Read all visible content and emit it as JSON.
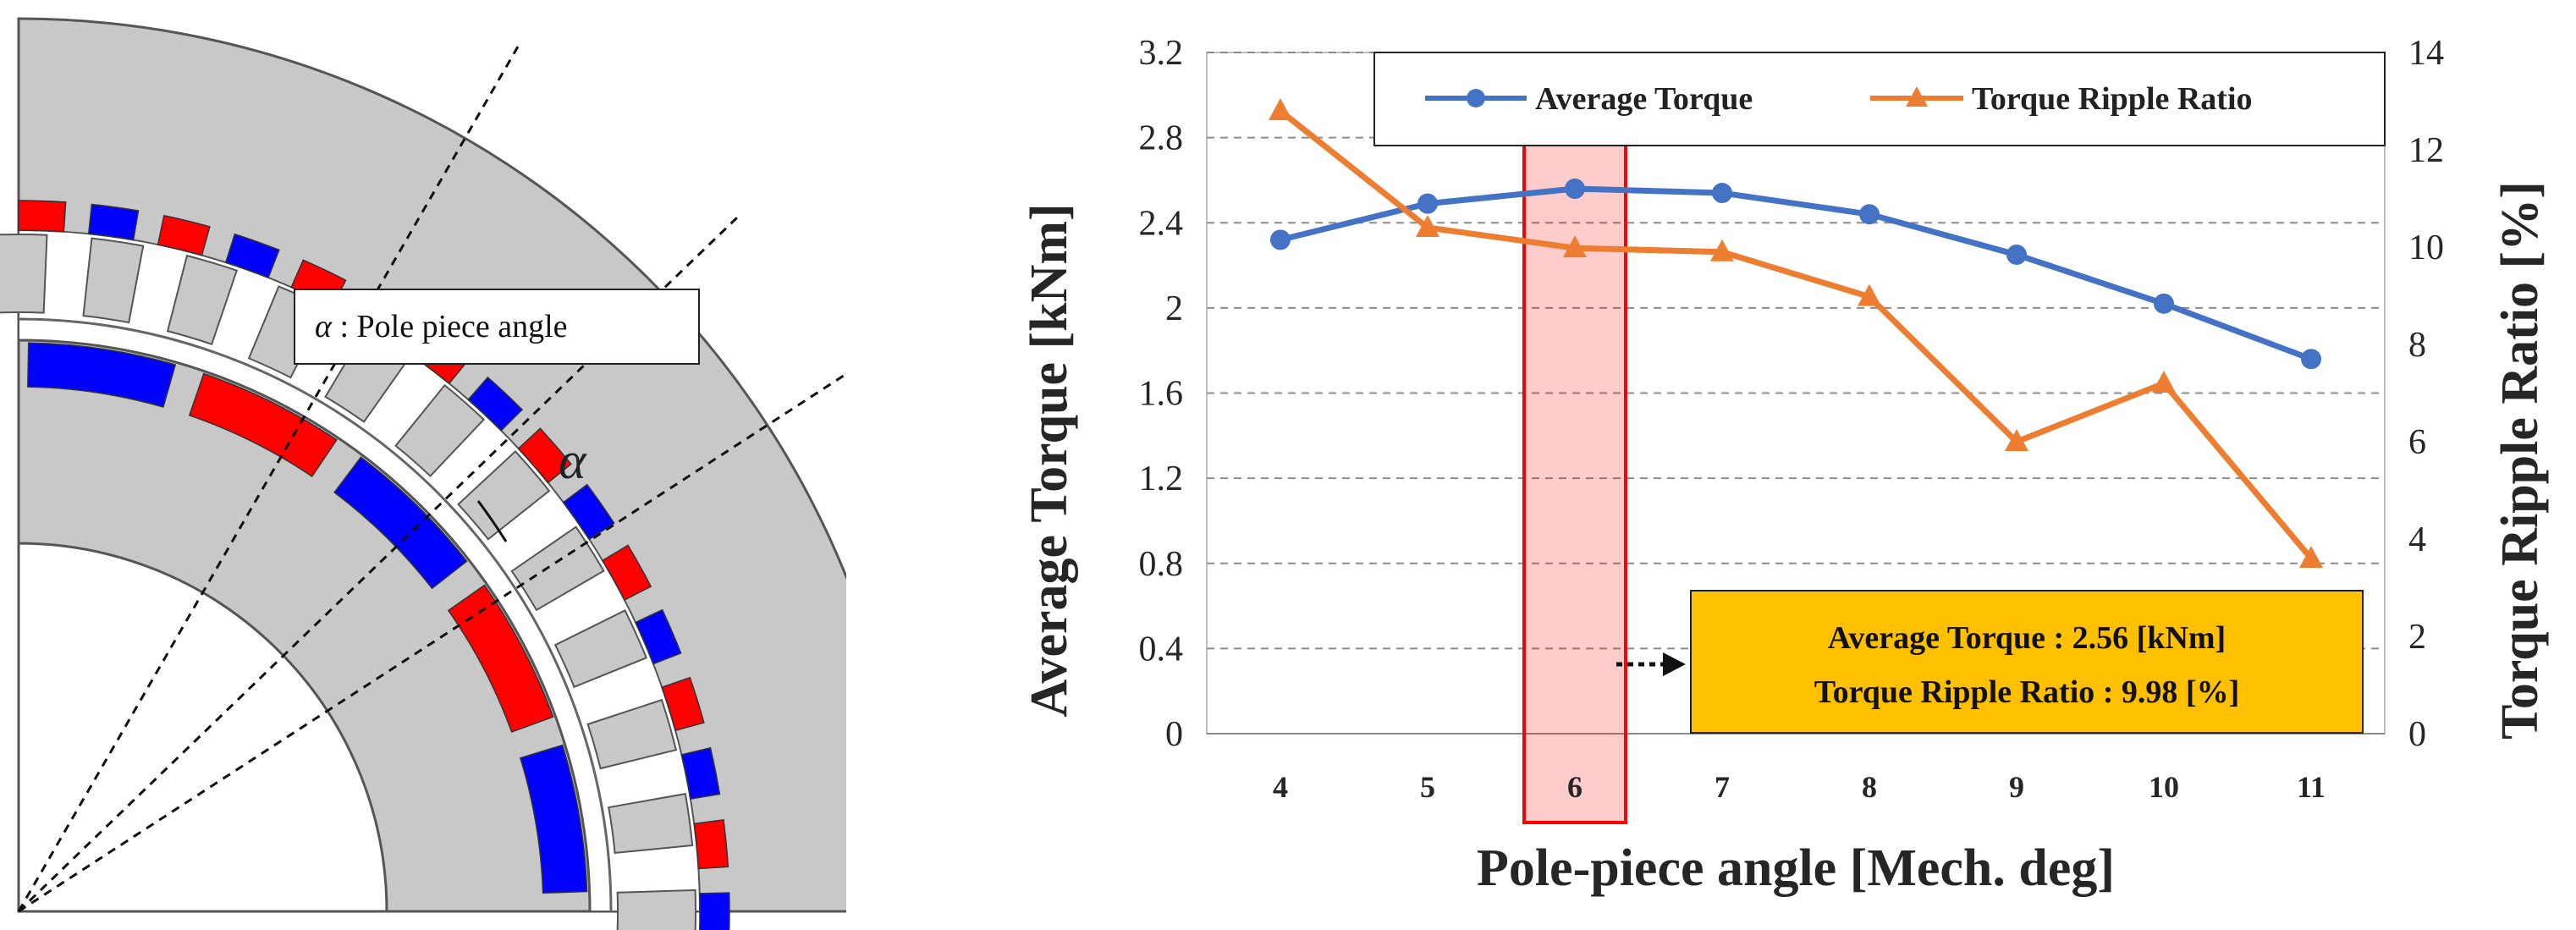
{
  "diagram": {
    "label_prefix": "α",
    "label_rest": " : Pole piece angle",
    "alpha_symbol": "α",
    "colors": {
      "rotor": "#c8c8c8",
      "magnet_red": "#ff0000",
      "magnet_blue": "#0000ff"
    }
  },
  "chart_data": {
    "type": "line",
    "xlabel": "Pole-piece angle [Mech. deg]",
    "ylabel": "Average Torque [kNm]",
    "y2label": "Torque Ripple Ratio [%]",
    "categories": [
      "4",
      "5",
      "6",
      "7",
      "8",
      "9",
      "10",
      "11"
    ],
    "x": [
      4,
      5,
      6,
      7,
      8,
      9,
      10,
      11
    ],
    "ylim": [
      0,
      3.2
    ],
    "yticks": [
      "0",
      "0.4",
      "0.8",
      "1.2",
      "1.6",
      "2",
      "2.4",
      "2.8",
      "3.2"
    ],
    "y2lim": [
      0,
      14
    ],
    "y2ticks": [
      "0",
      "2",
      "4",
      "6",
      "8",
      "10",
      "12",
      "14"
    ],
    "grid": true,
    "legend_position": "top",
    "series": [
      {
        "name": "Average Torque",
        "axis": "left",
        "marker": "circle",
        "color": "#4472c4",
        "values": [
          2.32,
          2.49,
          2.56,
          2.54,
          2.44,
          2.25,
          2.02,
          1.76
        ]
      },
      {
        "name": "Torque Ripple Ratio",
        "axis": "right",
        "marker": "triangle",
        "color": "#ed7d31",
        "values": [
          12.8,
          10.4,
          9.98,
          9.9,
          8.98,
          6.0,
          7.2,
          3.6
        ]
      }
    ],
    "highlight": {
      "category": "6",
      "color": "#ff0000"
    },
    "annotation": {
      "line1": "Average Torque : 2.56 [kNm]",
      "line2": "Torque Ripple Ratio : 9.98 [%]",
      "background": "#ffc000"
    }
  }
}
